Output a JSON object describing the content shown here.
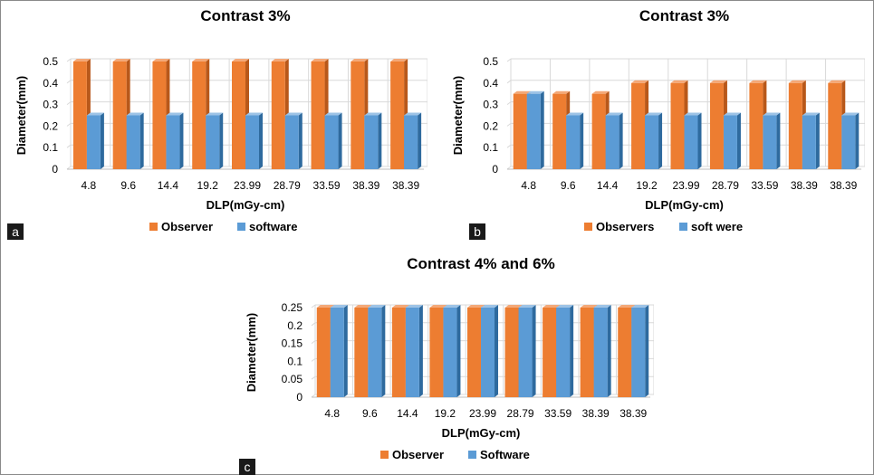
{
  "colors": {
    "observer_front": "#ED7D31",
    "observer_side": "#B8581A",
    "observer_top": "#F4A877",
    "software_front": "#5B9BD5",
    "software_side": "#2E6A9E",
    "software_top": "#9DC3E6",
    "grid": "#d9d9d9",
    "axis_text": "#000000"
  },
  "chart_data": [
    {
      "type": "bar",
      "panel_label": "a",
      "title": "Contrast 3%",
      "xlabel": "DLP(mGy-cm)",
      "ylabel": "Diameter(mm)",
      "categories": [
        "4.8",
        "9.6",
        "14.4",
        "19.2",
        "23.99",
        "28.79",
        "33.59",
        "38.39",
        "38.39"
      ],
      "yticks": [
        "0",
        "0.1",
        "0.2",
        "0.3",
        "0.4",
        "0.5"
      ],
      "ylim": [
        0,
        0.5
      ],
      "legend_position": "bottom",
      "series": [
        {
          "name": "Observer",
          "values": [
            0.5,
            0.5,
            0.5,
            0.5,
            0.5,
            0.5,
            0.5,
            0.5,
            0.5
          ]
        },
        {
          "name": "software",
          "values": [
            0.25,
            0.25,
            0.25,
            0.25,
            0.25,
            0.25,
            0.25,
            0.25,
            0.25
          ]
        }
      ]
    },
    {
      "type": "bar",
      "panel_label": "b",
      "title": "Contrast 3%",
      "xlabel": "DLP(mGy-cm)",
      "ylabel": "Diameter(mm)",
      "categories": [
        "4.8",
        "9.6",
        "14.4",
        "19.2",
        "23.99",
        "28.79",
        "33.59",
        "38.39",
        "38.39"
      ],
      "yticks": [
        "0",
        "0.1",
        "0.2",
        "0.3",
        "0.4",
        "0.5"
      ],
      "ylim": [
        0,
        0.5
      ],
      "legend_position": "bottom",
      "series": [
        {
          "name": "Observers",
          "values": [
            0.35,
            0.35,
            0.35,
            0.4,
            0.4,
            0.4,
            0.4,
            0.4,
            0.4
          ]
        },
        {
          "name": "soft were",
          "values": [
            0.35,
            0.25,
            0.25,
            0.25,
            0.25,
            0.25,
            0.25,
            0.25,
            0.25
          ]
        }
      ]
    },
    {
      "type": "bar",
      "panel_label": "c",
      "title": "Contrast 4% and 6%",
      "xlabel": "DLP(mGy-cm)",
      "ylabel": "Diameter(mm)",
      "categories": [
        "4.8",
        "9.6",
        "14.4",
        "19.2",
        "23.99",
        "28.79",
        "33.59",
        "38.39",
        "38.39"
      ],
      "yticks": [
        "0",
        "0.05",
        "0.1",
        "0.15",
        "0.2",
        "0.25"
      ],
      "ylim": [
        0,
        0.25
      ],
      "legend_position": "bottom",
      "series": [
        {
          "name": "Observer",
          "values": [
            0.25,
            0.25,
            0.25,
            0.25,
            0.25,
            0.25,
            0.25,
            0.25,
            0.25
          ]
        },
        {
          "name": "Software",
          "values": [
            0.25,
            0.25,
            0.25,
            0.25,
            0.25,
            0.25,
            0.25,
            0.25,
            0.25
          ]
        }
      ]
    }
  ]
}
